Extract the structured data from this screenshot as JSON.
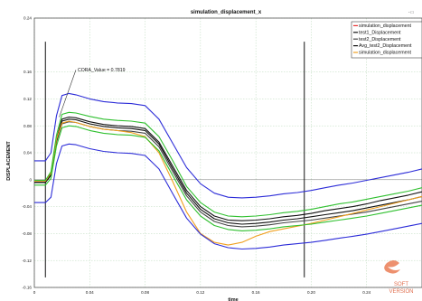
{
  "toolbar": {
    "corner_text": "- □"
  },
  "chart_data": {
    "type": "line",
    "title": "simulation_displacement_x",
    "xlabel": "time",
    "ylabel": "DISPLACEMENT",
    "xlim": [
      0,
      0.28
    ],
    "ylim": [
      -0.16,
      0.24
    ],
    "xticks": [
      0,
      0.04,
      0.08,
      0.12,
      0.16,
      0.2,
      0.24
    ],
    "xtick_labels": [
      "0",
      "0.04",
      "0.08",
      "0.12",
      "0.16",
      "0.20",
      "0.24"
    ],
    "yticks": [
      -0.16,
      -0.12,
      -0.08,
      -0.04,
      0,
      0.04,
      0.08,
      0.12,
      0.16,
      0.24
    ],
    "ytick_labels": [
      "-0.16",
      "-0.12",
      "-0.08",
      "-0.04",
      "0",
      "0.04",
      "0.08",
      "0.12",
      "0.16",
      "0.24"
    ],
    "grid": true,
    "legend_position": "top-right",
    "vlines": [
      0.008,
      0.195
    ],
    "annotation": {
      "text": "CORA_Value = 0.7819",
      "x": 0.018,
      "y": 0.093,
      "label_x": 0.03,
      "label_y": 0.163
    },
    "series": [
      {
        "name": "simulation_displacement",
        "color": "#e83030",
        "legend": true,
        "line": false,
        "x": [
          0,
          0.01
        ],
        "y": [
          0,
          0
        ]
      },
      {
        "name": "test1_Displacement",
        "color": "#111111",
        "legend": true,
        "line": true,
        "x": [
          0,
          0.008,
          0.012,
          0.016,
          0.02,
          0.025,
          0.03,
          0.04,
          0.05,
          0.06,
          0.07,
          0.08,
          0.09,
          0.1,
          0.11,
          0.12,
          0.13,
          0.14,
          0.15,
          0.16,
          0.17,
          0.18,
          0.19,
          0.2,
          0.21,
          0.22,
          0.23,
          0.24,
          0.25,
          0.26,
          0.27,
          0.28
        ],
        "y": [
          -0.004,
          -0.004,
          0.008,
          0.06,
          0.09,
          0.093,
          0.092,
          0.086,
          0.082,
          0.08,
          0.079,
          0.076,
          0.056,
          0.02,
          -0.016,
          -0.04,
          -0.054,
          -0.06,
          -0.061,
          -0.06,
          -0.058,
          -0.055,
          -0.053,
          -0.05,
          -0.046,
          -0.043,
          -0.04,
          -0.036,
          -0.031,
          -0.027,
          -0.023,
          -0.018
        ]
      },
      {
        "name": "test2_Displacement",
        "color": "#444444",
        "legend": true,
        "line": true,
        "x": [
          0,
          0.008,
          0.012,
          0.016,
          0.02,
          0.025,
          0.03,
          0.04,
          0.05,
          0.06,
          0.07,
          0.08,
          0.09,
          0.1,
          0.11,
          0.12,
          0.13,
          0.14,
          0.15,
          0.16,
          0.17,
          0.18,
          0.19,
          0.2,
          0.21,
          0.22,
          0.23,
          0.24,
          0.25,
          0.26,
          0.27,
          0.28
        ],
        "y": [
          -0.004,
          -0.004,
          0.006,
          0.056,
          0.083,
          0.086,
          0.085,
          0.079,
          0.075,
          0.073,
          0.072,
          0.069,
          0.049,
          0.012,
          -0.024,
          -0.048,
          -0.062,
          -0.068,
          -0.07,
          -0.069,
          -0.067,
          -0.064,
          -0.062,
          -0.06,
          -0.057,
          -0.054,
          -0.051,
          -0.048,
          -0.044,
          -0.04,
          -0.036,
          -0.032
        ]
      },
      {
        "name": "Avg_test2_Displacement",
        "color": "#111111",
        "legend": true,
        "line": true,
        "x": [
          0,
          0.008,
          0.012,
          0.016,
          0.02,
          0.025,
          0.03,
          0.04,
          0.05,
          0.06,
          0.07,
          0.08,
          0.09,
          0.1,
          0.11,
          0.12,
          0.13,
          0.14,
          0.15,
          0.16,
          0.17,
          0.18,
          0.19,
          0.2,
          0.21,
          0.22,
          0.23,
          0.24,
          0.25,
          0.26,
          0.27,
          0.28
        ],
        "y": [
          -0.004,
          -0.004,
          0.007,
          0.058,
          0.087,
          0.09,
          0.089,
          0.083,
          0.079,
          0.077,
          0.076,
          0.073,
          0.053,
          0.016,
          -0.02,
          -0.044,
          -0.058,
          -0.064,
          -0.066,
          -0.065,
          -0.063,
          -0.06,
          -0.058,
          -0.055,
          -0.052,
          -0.049,
          -0.046,
          -0.042,
          -0.038,
          -0.034,
          -0.03,
          -0.025
        ]
      },
      {
        "name": "simulation_displacement",
        "color": "#f0a020",
        "legend": true,
        "line": true,
        "x": [
          0,
          0.008,
          0.012,
          0.016,
          0.02,
          0.025,
          0.03,
          0.04,
          0.05,
          0.06,
          0.07,
          0.08,
          0.09,
          0.1,
          0.11,
          0.12,
          0.13,
          0.14,
          0.15,
          0.16,
          0.17,
          0.18,
          0.19,
          0.2,
          0.21,
          0.22,
          0.23,
          0.24,
          0.25,
          0.26,
          0.27,
          0.28
        ],
        "y": [
          -0.002,
          -0.002,
          0.01,
          0.06,
          0.084,
          0.087,
          0.085,
          0.079,
          0.075,
          0.073,
          0.07,
          0.064,
          0.04,
          -0.003,
          -0.048,
          -0.08,
          -0.093,
          -0.097,
          -0.093,
          -0.084,
          -0.077,
          -0.073,
          -0.069,
          -0.065,
          -0.06,
          -0.055,
          -0.05,
          -0.045,
          -0.04,
          -0.035,
          -0.03,
          -0.025
        ]
      },
      {
        "name": "inner_corridor_upper",
        "color": "#30c030",
        "legend": false,
        "line": true,
        "x": [
          0,
          0.008,
          0.012,
          0.016,
          0.02,
          0.025,
          0.03,
          0.04,
          0.05,
          0.06,
          0.07,
          0.08,
          0.09,
          0.1,
          0.11,
          0.12,
          0.13,
          0.14,
          0.15,
          0.16,
          0.17,
          0.18,
          0.19,
          0.2,
          0.21,
          0.22,
          0.23,
          0.24,
          0.25,
          0.26,
          0.27,
          0.28
        ],
        "y": [
          -0.001,
          -0.001,
          0.012,
          0.066,
          0.097,
          0.1,
          0.099,
          0.094,
          0.09,
          0.088,
          0.087,
          0.084,
          0.064,
          0.028,
          -0.01,
          -0.034,
          -0.048,
          -0.054,
          -0.055,
          -0.054,
          -0.052,
          -0.049,
          -0.047,
          -0.044,
          -0.04,
          -0.036,
          -0.033,
          -0.029,
          -0.025,
          -0.021,
          -0.017,
          -0.012
        ]
      },
      {
        "name": "inner_corridor_lower",
        "color": "#30c030",
        "legend": false,
        "line": true,
        "x": [
          0,
          0.008,
          0.012,
          0.016,
          0.02,
          0.025,
          0.03,
          0.04,
          0.05,
          0.06,
          0.07,
          0.08,
          0.09,
          0.1,
          0.11,
          0.12,
          0.13,
          0.14,
          0.15,
          0.16,
          0.17,
          0.18,
          0.19,
          0.2,
          0.21,
          0.22,
          0.23,
          0.24,
          0.25,
          0.26,
          0.27,
          0.28
        ],
        "y": [
          -0.008,
          -0.008,
          0.002,
          0.05,
          0.077,
          0.08,
          0.079,
          0.073,
          0.069,
          0.067,
          0.066,
          0.063,
          0.043,
          0.006,
          -0.03,
          -0.054,
          -0.068,
          -0.074,
          -0.076,
          -0.075,
          -0.073,
          -0.07,
          -0.068,
          -0.066,
          -0.063,
          -0.06,
          -0.057,
          -0.054,
          -0.05,
          -0.046,
          -0.042,
          -0.038
        ]
      },
      {
        "name": "outer_corridor_upper",
        "color": "#2d2dd8",
        "legend": false,
        "line": true,
        "x": [
          0,
          0.008,
          0.012,
          0.016,
          0.02,
          0.025,
          0.03,
          0.04,
          0.05,
          0.06,
          0.07,
          0.08,
          0.09,
          0.1,
          0.11,
          0.12,
          0.13,
          0.14,
          0.15,
          0.16,
          0.17,
          0.18,
          0.19,
          0.2,
          0.21,
          0.22,
          0.23,
          0.24,
          0.25,
          0.26,
          0.27,
          0.28
        ],
        "y": [
          0.028,
          0.028,
          0.04,
          0.095,
          0.125,
          0.128,
          0.126,
          0.12,
          0.116,
          0.114,
          0.113,
          0.11,
          0.09,
          0.054,
          0.018,
          -0.006,
          -0.02,
          -0.026,
          -0.027,
          -0.026,
          -0.024,
          -0.021,
          -0.019,
          -0.016,
          -0.012,
          -0.008,
          -0.005,
          -0.001,
          0.003,
          0.007,
          0.011,
          0.016
        ]
      },
      {
        "name": "outer_corridor_lower",
        "color": "#2d2dd8",
        "legend": false,
        "line": true,
        "x": [
          0,
          0.008,
          0.012,
          0.016,
          0.02,
          0.025,
          0.03,
          0.04,
          0.05,
          0.06,
          0.07,
          0.08,
          0.09,
          0.1,
          0.11,
          0.12,
          0.13,
          0.14,
          0.15,
          0.16,
          0.17,
          0.18,
          0.19,
          0.2,
          0.21,
          0.22,
          0.23,
          0.24,
          0.25,
          0.26,
          0.27,
          0.28
        ],
        "y": [
          -0.034,
          -0.034,
          -0.026,
          0.024,
          0.05,
          0.053,
          0.052,
          0.046,
          0.042,
          0.04,
          0.039,
          0.036,
          0.016,
          -0.021,
          -0.057,
          -0.081,
          -0.095,
          -0.101,
          -0.103,
          -0.102,
          -0.1,
          -0.097,
          -0.095,
          -0.093,
          -0.09,
          -0.087,
          -0.084,
          -0.081,
          -0.077,
          -0.073,
          -0.069,
          -0.065
        ]
      }
    ]
  },
  "watermark": {
    "top": "SOFT",
    "bottom": "VERSION"
  }
}
